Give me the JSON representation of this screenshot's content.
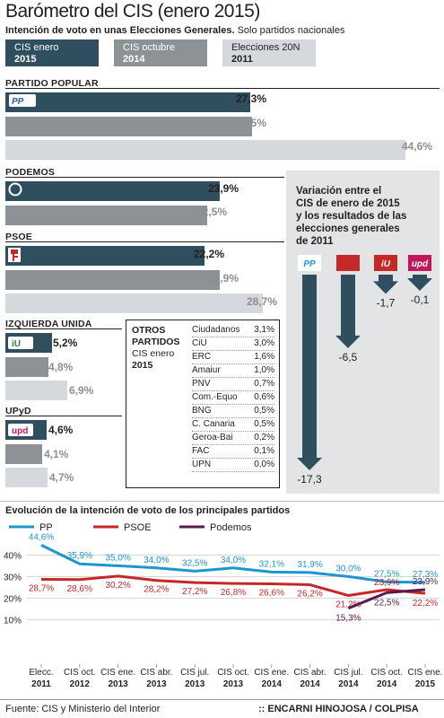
{
  "header": {
    "title": "Barómetro del CIS (enero 2015)",
    "subtitle_bold": "Intención de voto en unas Elecciones Generales.",
    "subtitle_rest": " Solo partidos nacionales"
  },
  "legend": [
    {
      "line1": "CIS enero",
      "line2": "2015",
      "color": "#2f4f5e"
    },
    {
      "line1": "CIS octubre",
      "line2": "2014",
      "color": "#8d9296"
    },
    {
      "line1": "Elecciones 20N",
      "line2": "2011",
      "color": "#d5d9dd"
    }
  ],
  "colors": {
    "jan": "#2f4f5e",
    "oct": "#8d9296",
    "el": "#d5d9dd",
    "pp": "#1f95cf",
    "psoe": "#c62828",
    "podemos": "#5b1a4e"
  },
  "chart_data": [
    {
      "type": "bar",
      "title": "Intención de voto en unas Elecciones Generales",
      "categories": [
        "PARTIDO POPULAR",
        "PODEMOS",
        "PSOE",
        "IZQUIERDA UNIDA",
        "UPyD"
      ],
      "series": [
        {
          "name": "CIS enero 2015",
          "values": [
            27.3,
            23.9,
            22.2,
            5.2,
            4.6
          ]
        },
        {
          "name": "CIS octubre 2014",
          "values": [
            27.5,
            22.5,
            23.9,
            4.8,
            4.1
          ]
        },
        {
          "name": "Elecciones 20N 2011",
          "values": [
            44.6,
            null,
            28.7,
            6.9,
            4.7
          ]
        }
      ],
      "labels": [
        [
          "27,3%",
          "27,5%",
          "44,6%"
        ],
        [
          "23,9%",
          "22,5%",
          ""
        ],
        [
          "22,2%",
          "23,9%",
          "28,7%"
        ],
        [
          "5,2%",
          "4,8%",
          "6,9%"
        ],
        [
          "4,6%",
          "4,1%",
          "4,7%"
        ]
      ]
    },
    {
      "type": "table",
      "title_lines": [
        "OTROS",
        "PARTIDOS",
        "CIS enero",
        "2015"
      ],
      "rows": [
        [
          "Ciudadanos",
          "3,1%"
        ],
        [
          "CiU",
          "3,0%"
        ],
        [
          "ERC",
          "1,6%"
        ],
        [
          "Amaiur",
          "1,0%"
        ],
        [
          "PNV",
          "0,7%"
        ],
        [
          "Com.-Equo",
          "0,6%"
        ],
        [
          "BNG",
          "0,5%"
        ],
        [
          "C. Canaria",
          "0,5%"
        ],
        [
          "Geroa-Bai",
          "0,2%"
        ],
        [
          "FAC",
          "0,1%"
        ],
        [
          "UPN",
          "0,0%"
        ]
      ]
    },
    {
      "type": "bar",
      "title": "Variación entre el CIS de enero de 2015 y los resultados de las elecciones generales de 2011",
      "title_lines": [
        "Variación entre el",
        "CIS de enero de 2015",
        "y los resultados de las",
        "elecciones generales",
        "de 2011"
      ],
      "categories": [
        "PP",
        "PSOE",
        "IU",
        "UPyD"
      ],
      "values": [
        -17.3,
        -6.5,
        -1.7,
        -0.1
      ],
      "labels": [
        "-17,3",
        "-6,5",
        "-1,7",
        "-0,1"
      ]
    },
    {
      "type": "line",
      "title": "Evolución de la intención de voto de los principales partidos",
      "x": [
        [
          "Elecc.",
          "2011"
        ],
        [
          "CIS oct.",
          "2012"
        ],
        [
          "CIS ene.",
          "2013"
        ],
        [
          "CIS abr.",
          "2013"
        ],
        [
          "CIS jul.",
          "2013"
        ],
        [
          "CIS oct.",
          "2013"
        ],
        [
          "CIS ene.",
          "2014"
        ],
        [
          "CIS abr.",
          "2014"
        ],
        [
          "CIS jul.",
          "2014"
        ],
        [
          "CIS oct.",
          "2014"
        ],
        [
          "CIS ene.",
          "2015"
        ]
      ],
      "ylim": [
        5,
        46
      ],
      "yticks": [
        "40%",
        "30%",
        "20%",
        "10%"
      ],
      "series": [
        {
          "name": "PP",
          "values": [
            44.6,
            35.9,
            35.0,
            34.0,
            32.5,
            34.0,
            32.1,
            31.9,
            30.0,
            27.5,
            27.3
          ],
          "labels": [
            "44,6%",
            "35,9%",
            "35,0%",
            "34,0%",
            "32,5%",
            "34,0%",
            "32,1%",
            "31,9%",
            "30,0%",
            "27,5%",
            "27,3%"
          ]
        },
        {
          "name": "PSOE",
          "values": [
            28.7,
            28.6,
            30.2,
            28.2,
            27.2,
            26.8,
            26.6,
            26.2,
            21.2,
            23.9,
            22.2
          ],
          "labels": [
            "28,7%",
            "28,6%",
            "30,2%",
            "28,2%",
            "27,2%",
            "26,8%",
            "26,6%",
            "26,2%",
            "21,2%",
            "23,9%",
            "22,2%"
          ]
        },
        {
          "name": "Podemos",
          "values": [
            null,
            null,
            null,
            null,
            null,
            null,
            null,
            null,
            15.3,
            22.5,
            23.9
          ],
          "labels": [
            "",
            "",
            "",
            "",
            "",
            "",
            "",
            "",
            "15,3%",
            "22,5%",
            "23,9%"
          ]
        }
      ]
    }
  ],
  "logos": {
    "pp": "PP",
    "iu": "iU",
    "upyd": "upd"
  },
  "footer": {
    "source": "Fuente: CIS y Ministerio del Interior",
    "credit": ":: ENCARNI HINOJOSA / COLPISA"
  }
}
